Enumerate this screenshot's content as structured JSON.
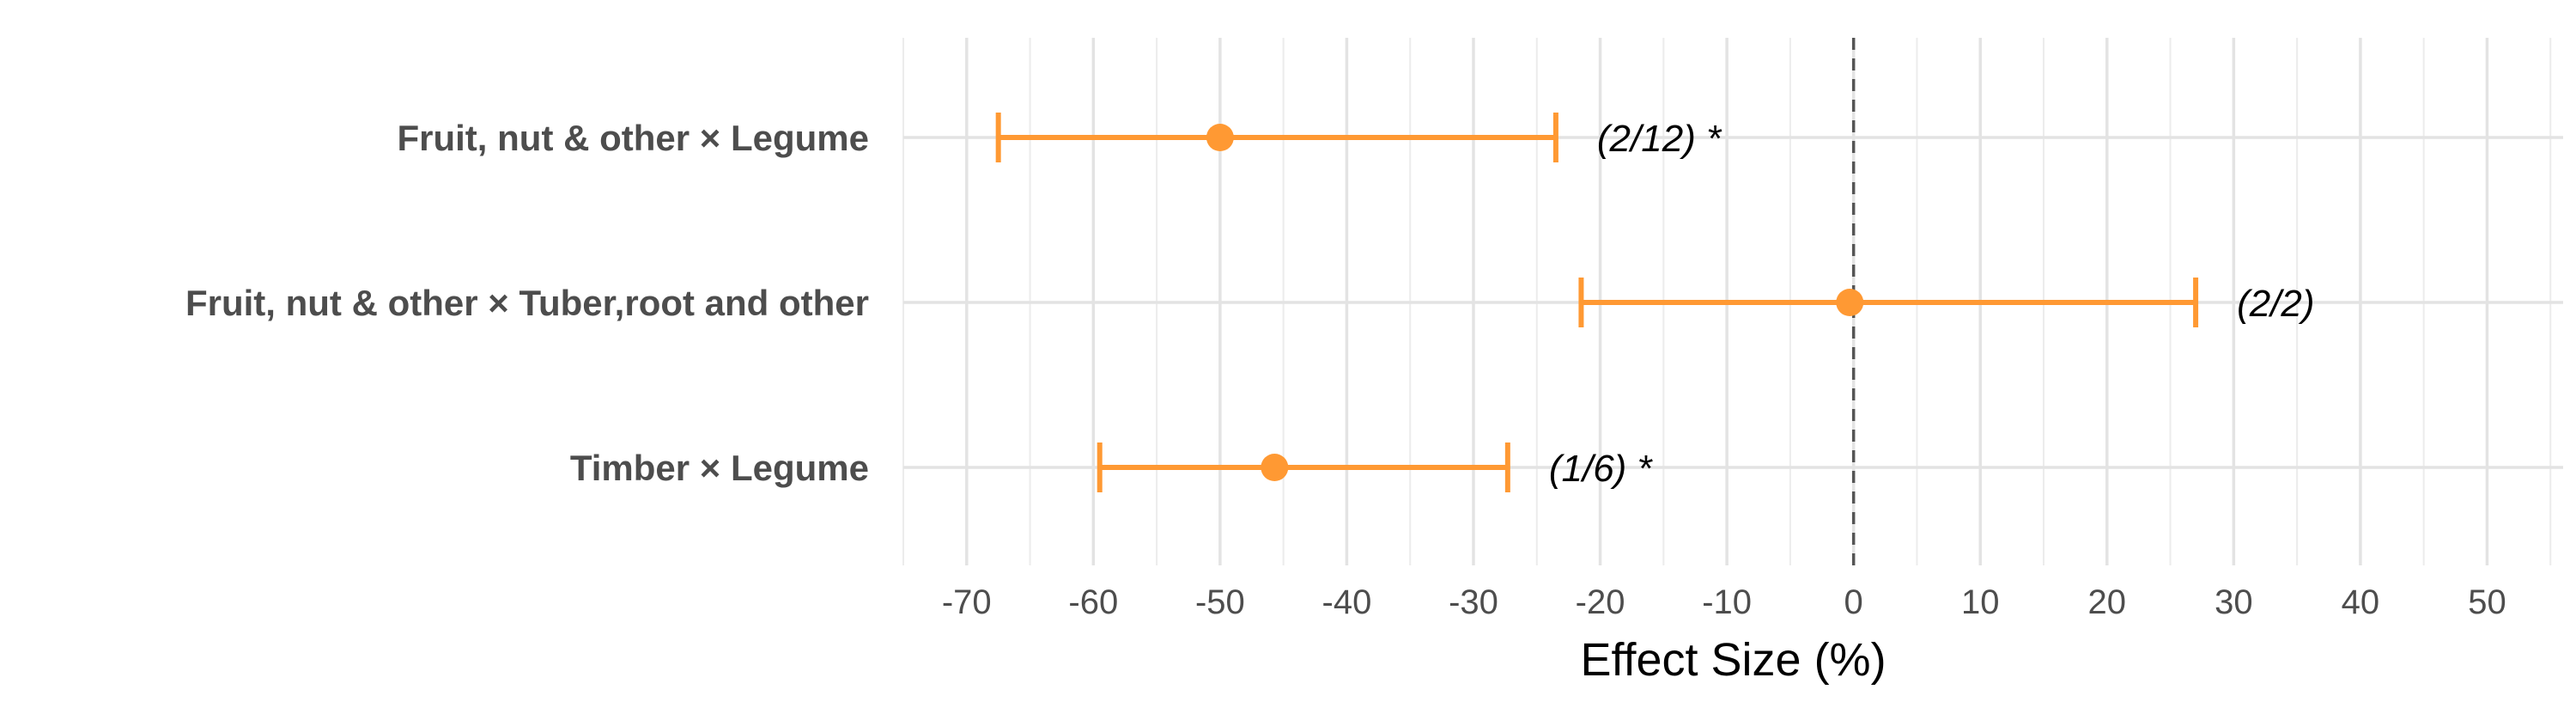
{
  "chart_data": {
    "type": "forest",
    "xlabel": "Effect Size (%)",
    "xlim": [
      -75,
      56
    ],
    "x_ticks": [
      -70,
      -60,
      -50,
      -40,
      -30,
      -20,
      -10,
      0,
      10,
      20,
      30,
      40,
      50
    ],
    "x_tick_labels": [
      "-70",
      "-60",
      "-50",
      "-40",
      "-30",
      "-20",
      "-10",
      "0",
      "10",
      "20",
      "30",
      "40",
      "50"
    ],
    "reference_line": 0,
    "grid": true,
    "color": "#FF9933",
    "rows": [
      {
        "label": "Fruit, nut & other × Legume",
        "estimate": -50,
        "lower": -67.5,
        "upper": -23.5,
        "annotation": "(2/12) *"
      },
      {
        "label": "Fruit, nut & other × Tuber,root and other",
        "estimate": -0.3,
        "lower": -21.5,
        "upper": 27,
        "annotation": "(2/2)"
      },
      {
        "label": "Timber × Legume",
        "estimate": -45.7,
        "lower": -59.5,
        "upper": -27.3,
        "annotation": "(1/6) *"
      }
    ]
  }
}
